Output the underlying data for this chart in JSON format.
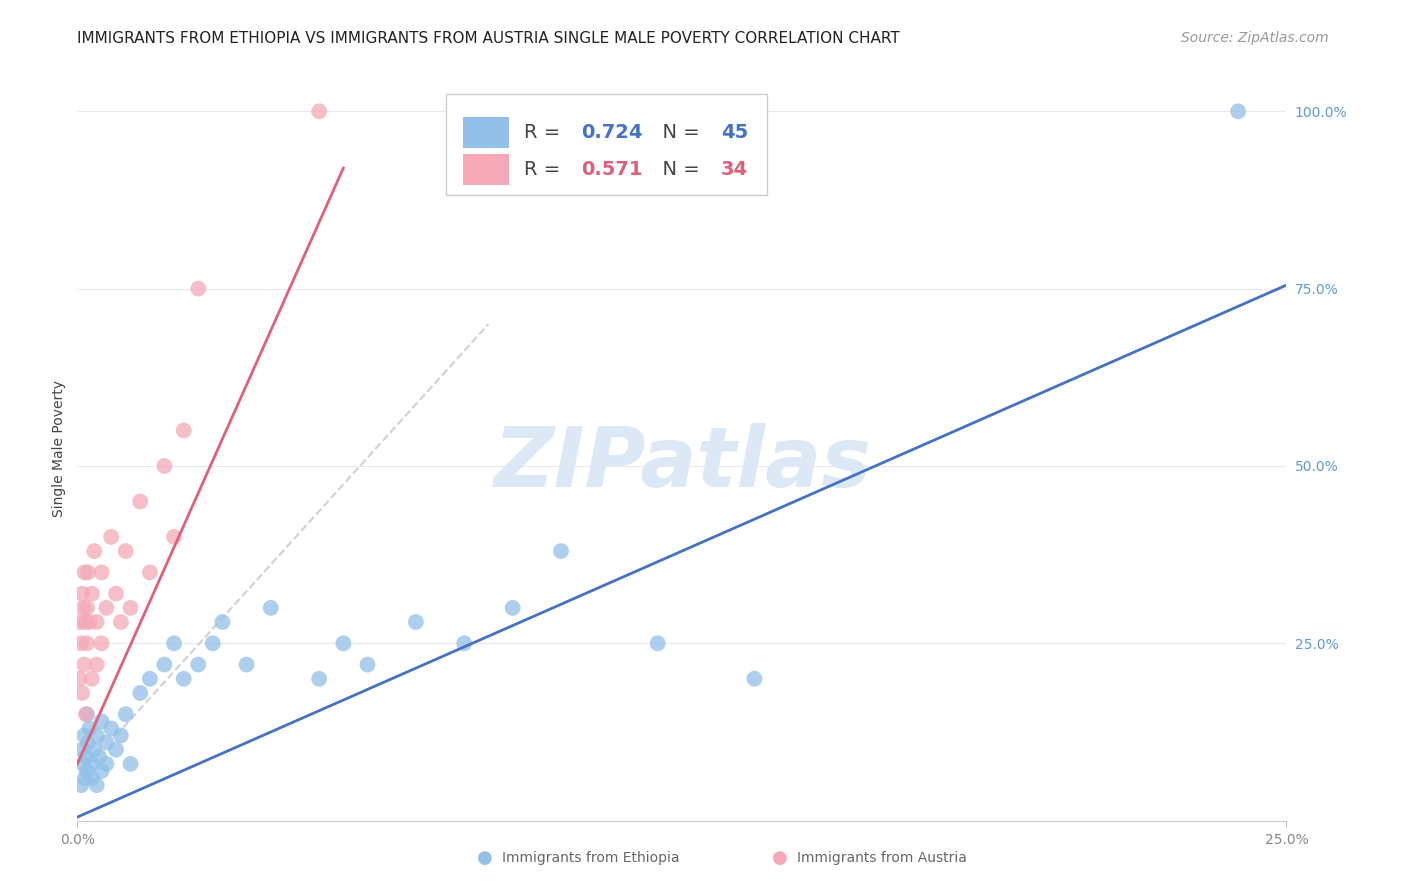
{
  "title": "IMMIGRANTS FROM ETHIOPIA VS IMMIGRANTS FROM AUSTRIA SINGLE MALE POVERTY CORRELATION CHART",
  "source": "Source: ZipAtlas.com",
  "ylabel": "Single Male Poverty",
  "r_ethiopia": 0.724,
  "n_ethiopia": 45,
  "r_austria": 0.571,
  "n_austria": 34,
  "color_ethiopia": "#92c0e8",
  "color_austria": "#f4a8b8",
  "color_ethiopia_line": "#4472c4",
  "color_austria_line": "#e0607a",
  "color_ref_line": "#c8c8d0",
  "watermark_color": "#dce8f5",
  "background_color": "#ffffff",
  "grid_color": "#e8e8ee",
  "xlim": [
    0.0,
    0.25
  ],
  "ylim": [
    0.0,
    1.05
  ],
  "ethiopia_x": [
    0.0008,
    0.001,
    0.0012,
    0.0014,
    0.0016,
    0.0018,
    0.002,
    0.002,
    0.0022,
    0.0025,
    0.003,
    0.003,
    0.0035,
    0.004,
    0.004,
    0.0045,
    0.005,
    0.005,
    0.006,
    0.006,
    0.007,
    0.008,
    0.009,
    0.01,
    0.011,
    0.013,
    0.015,
    0.018,
    0.02,
    0.022,
    0.025,
    0.028,
    0.03,
    0.035,
    0.04,
    0.05,
    0.055,
    0.06,
    0.07,
    0.08,
    0.09,
    0.1,
    0.12,
    0.14,
    0.24
  ],
  "ethiopia_y": [
    0.05,
    0.1,
    0.08,
    0.12,
    0.06,
    0.09,
    0.15,
    0.07,
    0.11,
    0.13,
    0.08,
    0.06,
    0.1,
    0.12,
    0.05,
    0.09,
    0.14,
    0.07,
    0.11,
    0.08,
    0.13,
    0.1,
    0.12,
    0.15,
    0.08,
    0.18,
    0.2,
    0.22,
    0.25,
    0.2,
    0.22,
    0.25,
    0.28,
    0.22,
    0.3,
    0.2,
    0.25,
    0.22,
    0.28,
    0.25,
    0.3,
    0.38,
    0.25,
    0.2,
    1.0
  ],
  "austria_x": [
    0.0004,
    0.0006,
    0.0008,
    0.001,
    0.001,
    0.0012,
    0.0014,
    0.0015,
    0.0016,
    0.0018,
    0.002,
    0.002,
    0.0022,
    0.0025,
    0.003,
    0.003,
    0.0035,
    0.004,
    0.004,
    0.005,
    0.005,
    0.006,
    0.007,
    0.008,
    0.009,
    0.01,
    0.011,
    0.013,
    0.015,
    0.018,
    0.02,
    0.022,
    0.025,
    0.05
  ],
  "austria_y": [
    0.2,
    0.28,
    0.25,
    0.32,
    0.18,
    0.3,
    0.22,
    0.35,
    0.28,
    0.15,
    0.3,
    0.25,
    0.35,
    0.28,
    0.2,
    0.32,
    0.38,
    0.28,
    0.22,
    0.35,
    0.25,
    0.3,
    0.4,
    0.32,
    0.28,
    0.38,
    0.3,
    0.45,
    0.35,
    0.5,
    0.4,
    0.55,
    0.75,
    1.0
  ],
  "eth_line_x": [
    0.0,
    0.25
  ],
  "eth_line_y": [
    0.005,
    0.755
  ],
  "aut_line_x": [
    0.0,
    0.055
  ],
  "aut_line_y": [
    0.08,
    0.92
  ],
  "ref_line_x": [
    0.008,
    0.085
  ],
  "ref_line_y": [
    0.12,
    0.7
  ],
  "title_fontsize": 11,
  "axis_tick_fontsize": 10,
  "source_fontsize": 10,
  "legend_fontsize": 14,
  "watermark_fontsize": 60
}
